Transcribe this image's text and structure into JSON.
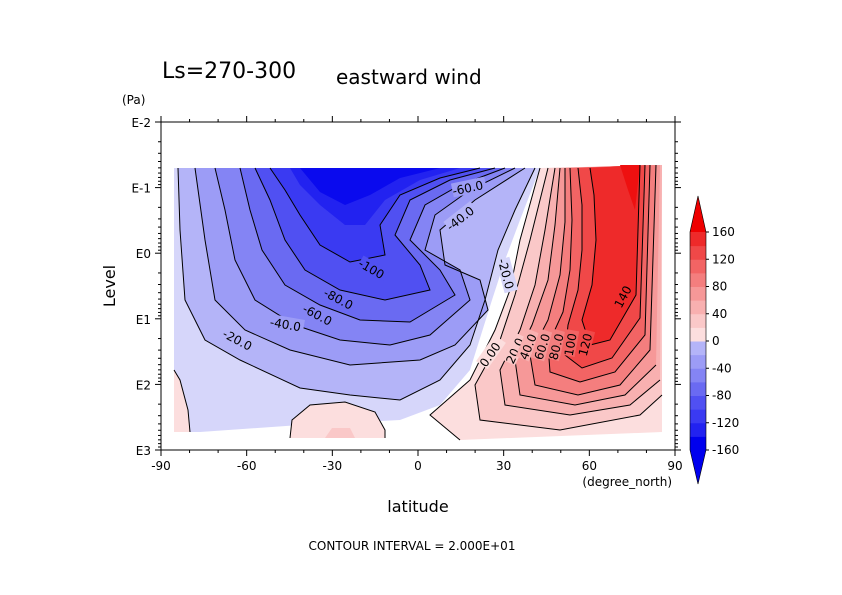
{
  "chart_data": {
    "type": "contour",
    "title_period": "Ls=270-300",
    "title_variable": "eastward wind",
    "xlabel": "latitude",
    "xunit": "(degree_north)",
    "ylabel": "Level",
    "yunit": "(Pa)",
    "x_ticks": [
      "-90",
      "-60",
      "-30",
      "0",
      "30",
      "60",
      "90"
    ],
    "x_tick_values": [
      -90,
      -60,
      -30,
      0,
      30,
      60,
      90
    ],
    "y_ticks": [
      "E-2",
      "E-1",
      "E0",
      "E1",
      "E2",
      "E3"
    ],
    "y_tick_exponents": [
      -2,
      -1,
      0,
      1,
      2,
      3
    ],
    "xlim": [
      -90,
      90
    ],
    "ylim_log10": [
      3,
      -2
    ],
    "footer": "CONTOUR INTERVAL = 2.000E+01",
    "contour_interval": 20,
    "colorbar": {
      "labels": [
        "160",
        "120",
        "80",
        "40",
        "0",
        "-40",
        "-80",
        "-120",
        "-160"
      ],
      "levels": [
        -160,
        -140,
        -120,
        -100,
        -80,
        -60,
        -40,
        -20,
        0,
        20,
        40,
        60,
        80,
        100,
        120,
        140,
        160
      ],
      "colors": [
        "#0000ee",
        "#2222f0",
        "#3a3af2",
        "#5050f2",
        "#6a6af2",
        "#8484f4",
        "#9c9cf6",
        "#b4b4f8",
        "#d6d6fa",
        "#fcdede",
        "#fac8c8",
        "#f8b0b0",
        "#f69898",
        "#f47e7e",
        "#f26464",
        "#f04848",
        "#ee2a2a",
        "#ee0000"
      ]
    },
    "contour_labels": [
      "-100",
      "-80.0",
      "-60.0",
      "-40.0",
      "-20.0",
      "-60.0",
      "-40.0",
      "-20.0",
      "0.00",
      "20.0",
      "40.0",
      "60.0",
      "80.0",
      "100",
      "120",
      "140"
    ],
    "regions": [
      {
        "name": "westward-outer",
        "value": -20
      },
      {
        "name": "westward-1",
        "value": -40
      },
      {
        "name": "westward-2",
        "value": -60
      },
      {
        "name": "westward-3",
        "value": -80
      },
      {
        "name": "westward-4",
        "value": -100
      },
      {
        "name": "westward-5",
        "value": -120
      },
      {
        "name": "westward-core",
        "value": -140
      },
      {
        "name": "eastward-outer",
        "value": 0
      },
      {
        "name": "eastward-1",
        "value": 20
      },
      {
        "name": "eastward-2",
        "value": 40
      },
      {
        "name": "eastward-3",
        "value": 60
      },
      {
        "name": "eastward-4",
        "value": 80
      },
      {
        "name": "eastward-5",
        "value": 100
      },
      {
        "name": "eastward-6",
        "value": 120
      },
      {
        "name": "eastward-core",
        "value": 140
      }
    ]
  }
}
